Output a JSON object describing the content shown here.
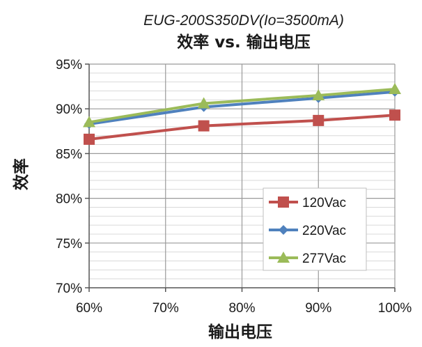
{
  "chart_data": {
    "type": "line",
    "subtitle": "EUG-200S350DV(Io=3500mA)",
    "title": "效率 vs. 输出电压",
    "xlabel": "输出电压",
    "ylabel": "效率",
    "x": [
      60,
      75,
      90,
      100
    ],
    "xlim": [
      60,
      100
    ],
    "xticks": [
      "60%",
      "70%",
      "80%",
      "90%",
      "100%"
    ],
    "ylim": [
      70,
      95
    ],
    "yticks": [
      "70%",
      "75%",
      "80%",
      "85%",
      "90%",
      "95%"
    ],
    "grid": true,
    "legend_position": "bottom-right",
    "series": [
      {
        "name": "120Vac",
        "color": "#c0504d",
        "marker": "square",
        "values": [
          86.6,
          88.1,
          88.7,
          89.3
        ]
      },
      {
        "name": "220Vac",
        "color": "#4f81bd",
        "marker": "diamond",
        "values": [
          88.3,
          90.2,
          91.2,
          91.9
        ]
      },
      {
        "name": "277Vac",
        "color": "#9bbb59",
        "marker": "triangle",
        "values": [
          88.5,
          90.6,
          91.5,
          92.2
        ]
      }
    ]
  }
}
